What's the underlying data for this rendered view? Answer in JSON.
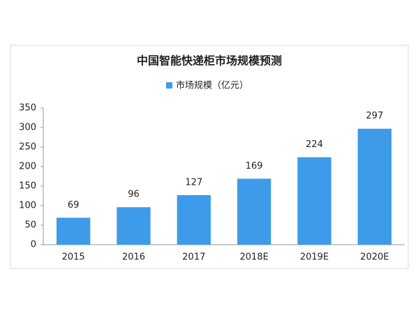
{
  "chart_data": {
    "type": "bar",
    "title": "中国智能快递柜市场规模预测",
    "legend": "市场规模（亿元）",
    "categories": [
      "2015",
      "2016",
      "2017",
      "2018E",
      "2019E",
      "2020E"
    ],
    "values": [
      69,
      96,
      127,
      169,
      224,
      297
    ],
    "color": "#3d9be9",
    "ylim": [
      0,
      350
    ],
    "yticks": [
      0,
      50,
      100,
      150,
      200,
      250,
      300,
      350
    ],
    "grid": false
  }
}
